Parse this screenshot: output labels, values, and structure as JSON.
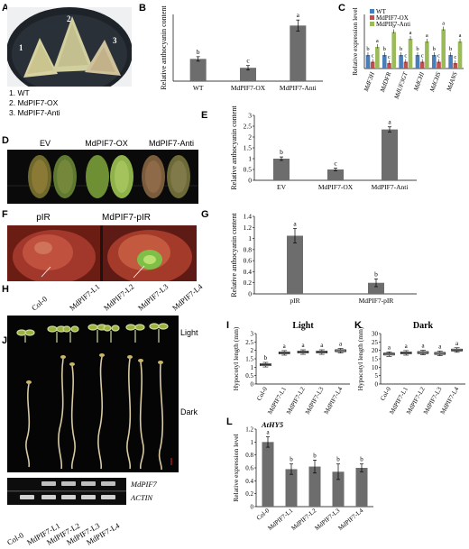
{
  "panels": {
    "A": "A",
    "B": "B",
    "C": "C",
    "D": "D",
    "E": "E",
    "F": "F",
    "G": "G",
    "H": "H",
    "I": "I",
    "J": "J",
    "K": "K",
    "L": "L"
  },
  "panelA": {
    "plate_numbers": [
      "1",
      "2",
      "3"
    ],
    "legend": [
      "1. WT",
      "2. MdPIF7-OX",
      "3. MdPIF7-Anti"
    ]
  },
  "panelD": {
    "labels": [
      "EV",
      "MdPIF7-OX",
      "MdPIF7-Anti"
    ]
  },
  "panelF": {
    "labels": [
      "pIR",
      "MdPIF7-pIR"
    ]
  },
  "panelH": {
    "columns": [
      "Col-0",
      "MdPIF7-L1",
      "MdPIF7-L2",
      "MdPIF7-L3",
      "MdPIF7-L4"
    ],
    "condition": "Light"
  },
  "panelJ": {
    "condition": "Dark",
    "gel_rows": [
      "MdPIF7",
      "ACTIN"
    ],
    "gel_columns": [
      "Col-0",
      "MdPIF7-L1",
      "MdPIF7-L2",
      "MdPIF7-L3",
      "MdPIF7-L4"
    ]
  },
  "colors": {
    "bar": "#6d6d6d",
    "wt": "#4a7ebb",
    "ox": "#c0504d",
    "anti": "#9bbb59"
  },
  "chart_data": [
    {
      "id": "B",
      "type": "bar",
      "ylabel": "Relative anthocyanin content",
      "categories": [
        "WT",
        "MdPIF7-OX",
        "MdPIF7-Anti"
      ],
      "values": [
        1.0,
        0.6,
        2.5
      ],
      "errors": [
        0.1,
        0.1,
        0.25
      ],
      "letters": [
        "b",
        "c",
        "a"
      ],
      "ylim": [
        0,
        3
      ]
    },
    {
      "id": "C",
      "type": "bar",
      "ylabel": "Relative expression level",
      "categories": [
        "MdF3H",
        "MdDFR",
        "MdUF3GT",
        "MdCHI",
        "MdCHS",
        "MdANS"
      ],
      "series": [
        {
          "name": "WT",
          "values": [
            1.0,
            1.0,
            1.0,
            1.0,
            1.0,
            1.0
          ],
          "letters": [
            "b",
            "b",
            "b",
            "b",
            "b",
            "b"
          ]
        },
        {
          "name": "MdPIF7-OX",
          "values": [
            0.5,
            0.4,
            0.5,
            0.5,
            0.5,
            0.4
          ],
          "letters": [
            "c",
            "c",
            "c",
            "c",
            "c",
            "c"
          ]
        },
        {
          "name": "MdPIF7-Anti",
          "values": [
            1.6,
            2.7,
            2.2,
            2.0,
            2.9,
            2.0
          ],
          "letters": [
            "a",
            "a",
            "a",
            "a",
            "a",
            "a"
          ]
        }
      ],
      "ylim": [
        0,
        4
      ]
    },
    {
      "id": "E",
      "type": "bar",
      "ylabel": "Relative anthocyanin content",
      "categories": [
        "EV",
        "MdPIF7-OX",
        "MdPIF7-Anti"
      ],
      "values": [
        1.0,
        0.5,
        2.35
      ],
      "errors": [
        0.08,
        0.06,
        0.12
      ],
      "letters": [
        "b",
        "c",
        "a"
      ],
      "ylim": [
        0,
        3
      ],
      "yticks": [
        "0",
        "0.5",
        "1",
        "1.5",
        "2",
        "2.5",
        "3"
      ]
    },
    {
      "id": "G",
      "type": "bar",
      "ylabel": "Relative anthocyanin content",
      "categories": [
        "pIR",
        "MdPIF7-pIR"
      ],
      "values": [
        1.05,
        0.2
      ],
      "errors": [
        0.13,
        0.07
      ],
      "letters": [
        "a",
        "b"
      ],
      "ylim": [
        0,
        1.4
      ],
      "yticks": [
        "0",
        "0.2",
        "0.4",
        "0.6",
        "0.8",
        "1",
        "1.2",
        "1.4"
      ]
    },
    {
      "id": "I",
      "type": "box",
      "title": "Light",
      "ylabel": "Hypocotyl length (mm)",
      "categories": [
        "Col-0",
        "MdPIF7-L1",
        "MdPIF7-L2",
        "MdPIF7-L3",
        "MdPIF7-L4"
      ],
      "medians": [
        1.15,
        1.85,
        1.9,
        1.9,
        1.98
      ],
      "letters": [
        "b",
        "a",
        "a",
        "a",
        "a"
      ],
      "ylim": [
        0,
        3
      ],
      "yticks": [
        "0",
        "0.5",
        "1",
        "1.5",
        "2",
        "2.5",
        "3"
      ]
    },
    {
      "id": "K",
      "type": "box",
      "title": "Dark",
      "ylabel": "Hypocotyl length (mm)",
      "categories": [
        "Col-0",
        "MdPIF7-L1",
        "MdPIF7-L2",
        "MdPIF7-L3",
        "MdPIF7-L4"
      ],
      "medians": [
        17.8,
        18.5,
        18.7,
        18.2,
        20.2
      ],
      "letters": [
        "a",
        "a",
        "a",
        "a",
        "a"
      ],
      "ylim": [
        0,
        30
      ],
      "yticks": [
        "0",
        "5",
        "10",
        "15",
        "20",
        "25",
        "30"
      ]
    },
    {
      "id": "L",
      "type": "bar",
      "title": "AtHY5",
      "ylabel": "Relative expression level",
      "categories": [
        "Col-0",
        "MdPIF7-L1",
        "MdPIF7-L2",
        "MdPIF7-L3",
        "MdPIF7-L4"
      ],
      "values": [
        1.0,
        0.58,
        0.62,
        0.54,
        0.6
      ],
      "errors": [
        0.08,
        0.08,
        0.1,
        0.12,
        0.06
      ],
      "letters": [
        "a",
        "b",
        "b",
        "b",
        "b"
      ],
      "ylim": [
        0,
        1.2
      ],
      "yticks": [
        "0",
        "0.2",
        "0.4",
        "0.6",
        "0.8",
        "1",
        "1.2"
      ]
    }
  ]
}
